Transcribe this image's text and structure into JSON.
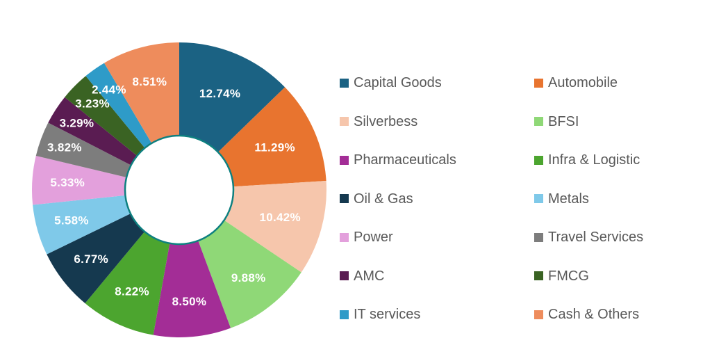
{
  "chart_data": {
    "type": "pie",
    "subtype": "donut",
    "title": "",
    "categories": [
      "Capital Goods",
      "Automobile",
      "Silverbess",
      "BFSI",
      "Pharmaceuticals",
      "Infra & Logistic",
      "Oil & Gas",
      "Metals",
      "Power",
      "Travel Services",
      "AMC",
      "FMCG",
      "IT services",
      "Cash & Others"
    ],
    "values": [
      12.74,
      11.29,
      10.42,
      9.88,
      8.5,
      8.22,
      6.77,
      5.58,
      5.33,
      3.82,
      3.29,
      3.23,
      2.44,
      8.51
    ],
    "labels": [
      "12.74%",
      "11.29%",
      "10.42%",
      "9.88%",
      "8.50%",
      "8.22%",
      "6.77%",
      "5.58%",
      "5.33%",
      "3.82%",
      "3.29%",
      "3.23%",
      "2.44%",
      "8.51%"
    ],
    "colors": [
      "#1B6283",
      "#E8742F",
      "#F6C6AC",
      "#8FD877",
      "#A32D96",
      "#4CA52F",
      "#15394F",
      "#7FC9E9",
      "#E3A0DC",
      "#7D7D7D",
      "#5A1C52",
      "#3A6323",
      "#2E9BC8",
      "#EE8C5C"
    ],
    "start_angle_deg": 0,
    "direction": "clockwise",
    "hole_border_color": "#0E8080",
    "slice_label_color": "#FFFFFF",
    "legend_position": "right",
    "legend_columns": 2,
    "legend_text_color": "#595959"
  }
}
